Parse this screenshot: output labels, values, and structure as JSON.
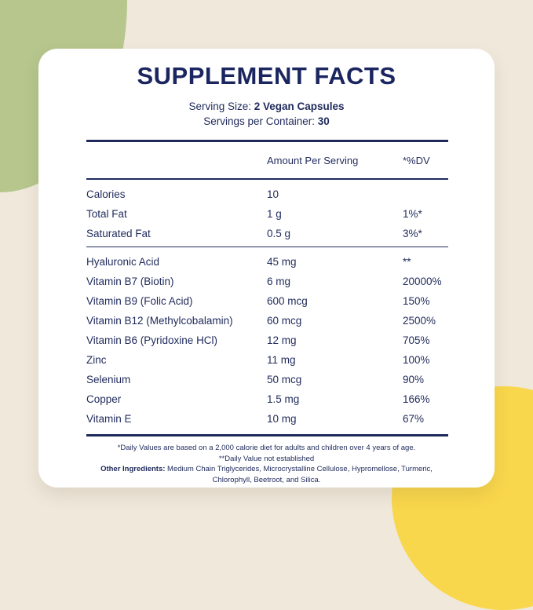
{
  "colors": {
    "background_cream": "#f0e8db",
    "blob_green": "#b6c68c",
    "blob_yellow": "#f9d74c",
    "card_white": "#ffffff",
    "text_navy": "#1f2a5b"
  },
  "label": {
    "title": "SUPPLEMENT FACTS",
    "serving_size": {
      "label": "Serving Size:",
      "value": "2 Vegan Capsules"
    },
    "servings_per_container": {
      "label": "Servings per Container:",
      "value": "30"
    },
    "columns": {
      "amount": "Amount Per Serving",
      "dv": "*%DV"
    },
    "sections": [
      {
        "rows": [
          {
            "label": "Calories",
            "amount": "10",
            "dv": ""
          },
          {
            "label": "Total Fat",
            "amount": "1 g",
            "dv": "1%*"
          },
          {
            "label": "Saturated Fat",
            "amount": "0.5 g",
            "dv": "3%*"
          }
        ]
      },
      {
        "rows": [
          {
            "label": "Hyaluronic Acid",
            "amount": "45 mg",
            "dv": "**"
          },
          {
            "label": "Vitamin B7 (Biotin)",
            "amount": "6 mg",
            "dv": "20000%"
          },
          {
            "label": "Vitamin B9 (Folic Acid)",
            "amount": "600 mcg",
            "dv": "150%"
          },
          {
            "label": "Vitamin B12 (Methylcobalamin)",
            "amount": "60 mcg",
            "dv": "2500%"
          },
          {
            "label": "Vitamin B6 (Pyridoxine HCl)",
            "amount": "12 mg",
            "dv": "705%"
          },
          {
            "label": "Zinc",
            "amount": "11 mg",
            "dv": "100%"
          },
          {
            "label": "Selenium",
            "amount": "50 mcg",
            "dv": "90%"
          },
          {
            "label": "Copper",
            "amount": "1.5 mg",
            "dv": "166%"
          },
          {
            "label": "Vitamin E",
            "amount": "10 mg",
            "dv": "67%"
          }
        ]
      }
    ],
    "footnotes": [
      "*Daily Values are based on a 2,000 calorie diet for adults and children over 4 years of age.",
      "**Daily Value not established"
    ],
    "other_ingredients": {
      "label": "Other Ingredients:",
      "text": "Medium Chain Triglycerides, Microcrystalline Cellulose, Hypromellose, Turmeric, Chlorophyll, Beetroot, and Silica."
    }
  }
}
